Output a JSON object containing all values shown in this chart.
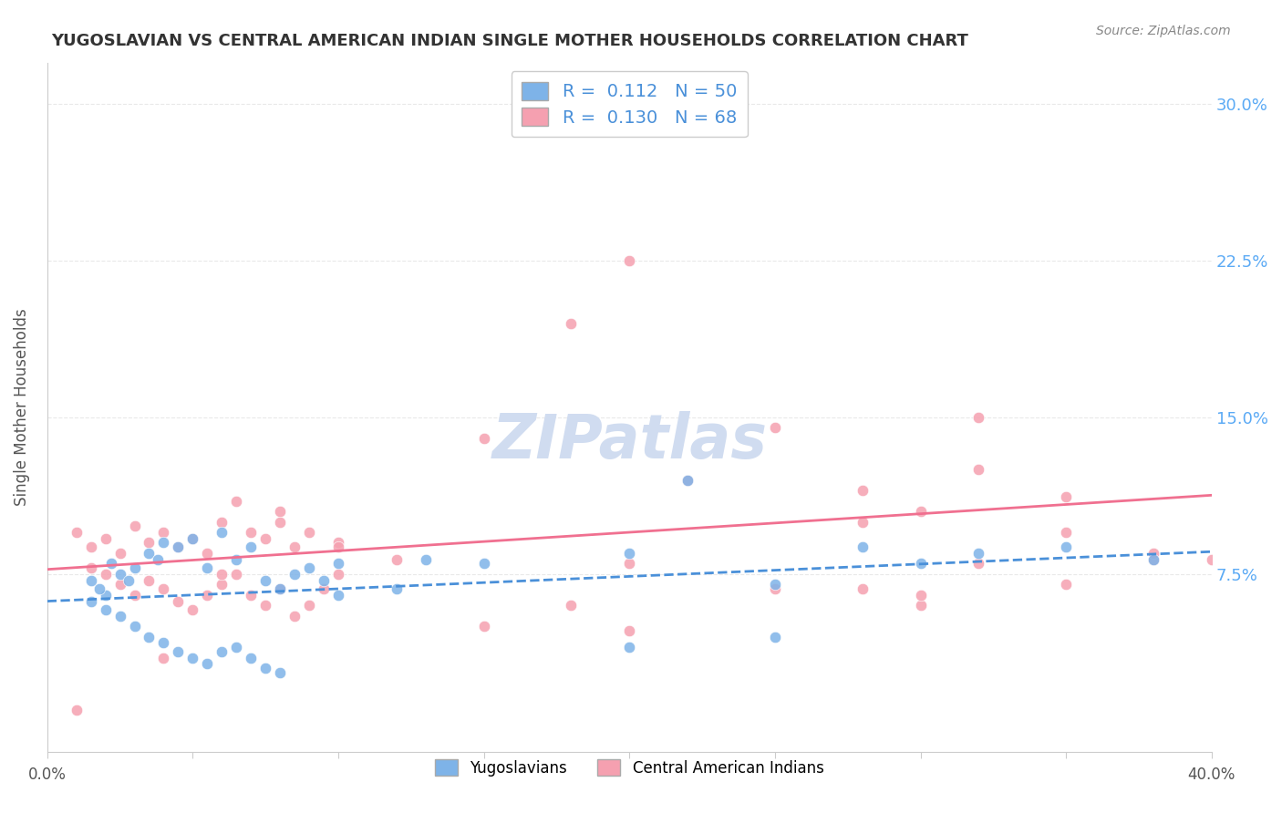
{
  "title": "YUGOSLAVIAN VS CENTRAL AMERICAN INDIAN SINGLE MOTHER HOUSEHOLDS CORRELATION CHART",
  "source": "Source: ZipAtlas.com",
  "ylabel": "Single Mother Households",
  "ytick_labels": [
    "7.5%",
    "15.0%",
    "22.5%",
    "30.0%"
  ],
  "ytick_values": [
    0.075,
    0.15,
    0.225,
    0.3
  ],
  "xlim": [
    0.0,
    0.4
  ],
  "ylim": [
    -0.01,
    0.32
  ],
  "legend_label1": "Yugoslavians",
  "legend_label2": "Central American Indians",
  "R1": 0.112,
  "N1": 50,
  "R2": 0.13,
  "N2": 68,
  "color_blue": "#7EB3E8",
  "color_pink": "#F5A0B0",
  "color_blue_text": "#4A90D9",
  "color_pink_text": "#F07090",
  "watermark_color": "#D0DCF0",
  "background_color": "#FFFFFF",
  "grid_color": "#E0E0E0",
  "title_color": "#333333",
  "right_axis_color": "#5BAAF5",
  "blue_scatter": [
    [
      0.02,
      0.065
    ],
    [
      0.025,
      0.075
    ],
    [
      0.015,
      0.072
    ],
    [
      0.018,
      0.068
    ],
    [
      0.022,
      0.08
    ],
    [
      0.03,
      0.078
    ],
    [
      0.028,
      0.072
    ],
    [
      0.035,
      0.085
    ],
    [
      0.04,
      0.09
    ],
    [
      0.038,
      0.082
    ],
    [
      0.045,
      0.088
    ],
    [
      0.05,
      0.092
    ],
    [
      0.055,
      0.078
    ],
    [
      0.06,
      0.095
    ],
    [
      0.065,
      0.082
    ],
    [
      0.07,
      0.088
    ],
    [
      0.075,
      0.072
    ],
    [
      0.08,
      0.068
    ],
    [
      0.085,
      0.075
    ],
    [
      0.09,
      0.078
    ],
    [
      0.095,
      0.072
    ],
    [
      0.1,
      0.08
    ],
    [
      0.12,
      0.068
    ],
    [
      0.13,
      0.082
    ],
    [
      0.015,
      0.062
    ],
    [
      0.02,
      0.058
    ],
    [
      0.025,
      0.055
    ],
    [
      0.03,
      0.05
    ],
    [
      0.035,
      0.045
    ],
    [
      0.04,
      0.042
    ],
    [
      0.045,
      0.038
    ],
    [
      0.05,
      0.035
    ],
    [
      0.055,
      0.032
    ],
    [
      0.06,
      0.038
    ],
    [
      0.065,
      0.04
    ],
    [
      0.07,
      0.035
    ],
    [
      0.075,
      0.03
    ],
    [
      0.08,
      0.028
    ],
    [
      0.1,
      0.065
    ],
    [
      0.15,
      0.08
    ],
    [
      0.2,
      0.085
    ],
    [
      0.25,
      0.07
    ],
    [
      0.28,
      0.088
    ],
    [
      0.3,
      0.08
    ],
    [
      0.32,
      0.085
    ],
    [
      0.35,
      0.088
    ],
    [
      0.38,
      0.082
    ],
    [
      0.22,
      0.12
    ],
    [
      0.2,
      0.04
    ],
    [
      0.25,
      0.045
    ]
  ],
  "pink_scatter": [
    [
      0.01,
      0.095
    ],
    [
      0.015,
      0.088
    ],
    [
      0.02,
      0.092
    ],
    [
      0.025,
      0.085
    ],
    [
      0.03,
      0.098
    ],
    [
      0.035,
      0.09
    ],
    [
      0.04,
      0.095
    ],
    [
      0.045,
      0.088
    ],
    [
      0.05,
      0.092
    ],
    [
      0.055,
      0.085
    ],
    [
      0.06,
      0.1
    ],
    [
      0.065,
      0.11
    ],
    [
      0.07,
      0.095
    ],
    [
      0.075,
      0.092
    ],
    [
      0.08,
      0.1
    ],
    [
      0.085,
      0.088
    ],
    [
      0.09,
      0.095
    ],
    [
      0.1,
      0.09
    ],
    [
      0.015,
      0.078
    ],
    [
      0.02,
      0.075
    ],
    [
      0.025,
      0.07
    ],
    [
      0.03,
      0.065
    ],
    [
      0.035,
      0.072
    ],
    [
      0.04,
      0.068
    ],
    [
      0.045,
      0.062
    ],
    [
      0.05,
      0.058
    ],
    [
      0.055,
      0.065
    ],
    [
      0.06,
      0.07
    ],
    [
      0.065,
      0.075
    ],
    [
      0.07,
      0.065
    ],
    [
      0.075,
      0.06
    ],
    [
      0.08,
      0.068
    ],
    [
      0.085,
      0.055
    ],
    [
      0.09,
      0.06
    ],
    [
      0.095,
      0.068
    ],
    [
      0.1,
      0.075
    ],
    [
      0.01,
      0.01
    ],
    [
      0.15,
      0.14
    ],
    [
      0.18,
      0.195
    ],
    [
      0.2,
      0.225
    ],
    [
      0.22,
      0.29
    ],
    [
      0.25,
      0.145
    ],
    [
      0.28,
      0.1
    ],
    [
      0.3,
      0.105
    ],
    [
      0.32,
      0.08
    ],
    [
      0.35,
      0.112
    ],
    [
      0.38,
      0.082
    ],
    [
      0.4,
      0.082
    ],
    [
      0.3,
      0.06
    ],
    [
      0.28,
      0.068
    ],
    [
      0.32,
      0.125
    ],
    [
      0.35,
      0.095
    ],
    [
      0.28,
      0.115
    ],
    [
      0.22,
      0.12
    ],
    [
      0.25,
      0.068
    ],
    [
      0.2,
      0.08
    ],
    [
      0.18,
      0.06
    ],
    [
      0.15,
      0.05
    ],
    [
      0.12,
      0.082
    ],
    [
      0.1,
      0.088
    ],
    [
      0.08,
      0.105
    ],
    [
      0.06,
      0.075
    ],
    [
      0.04,
      0.035
    ],
    [
      0.2,
      0.048
    ],
    [
      0.3,
      0.065
    ],
    [
      0.35,
      0.07
    ],
    [
      0.38,
      0.085
    ],
    [
      0.32,
      0.15
    ]
  ]
}
